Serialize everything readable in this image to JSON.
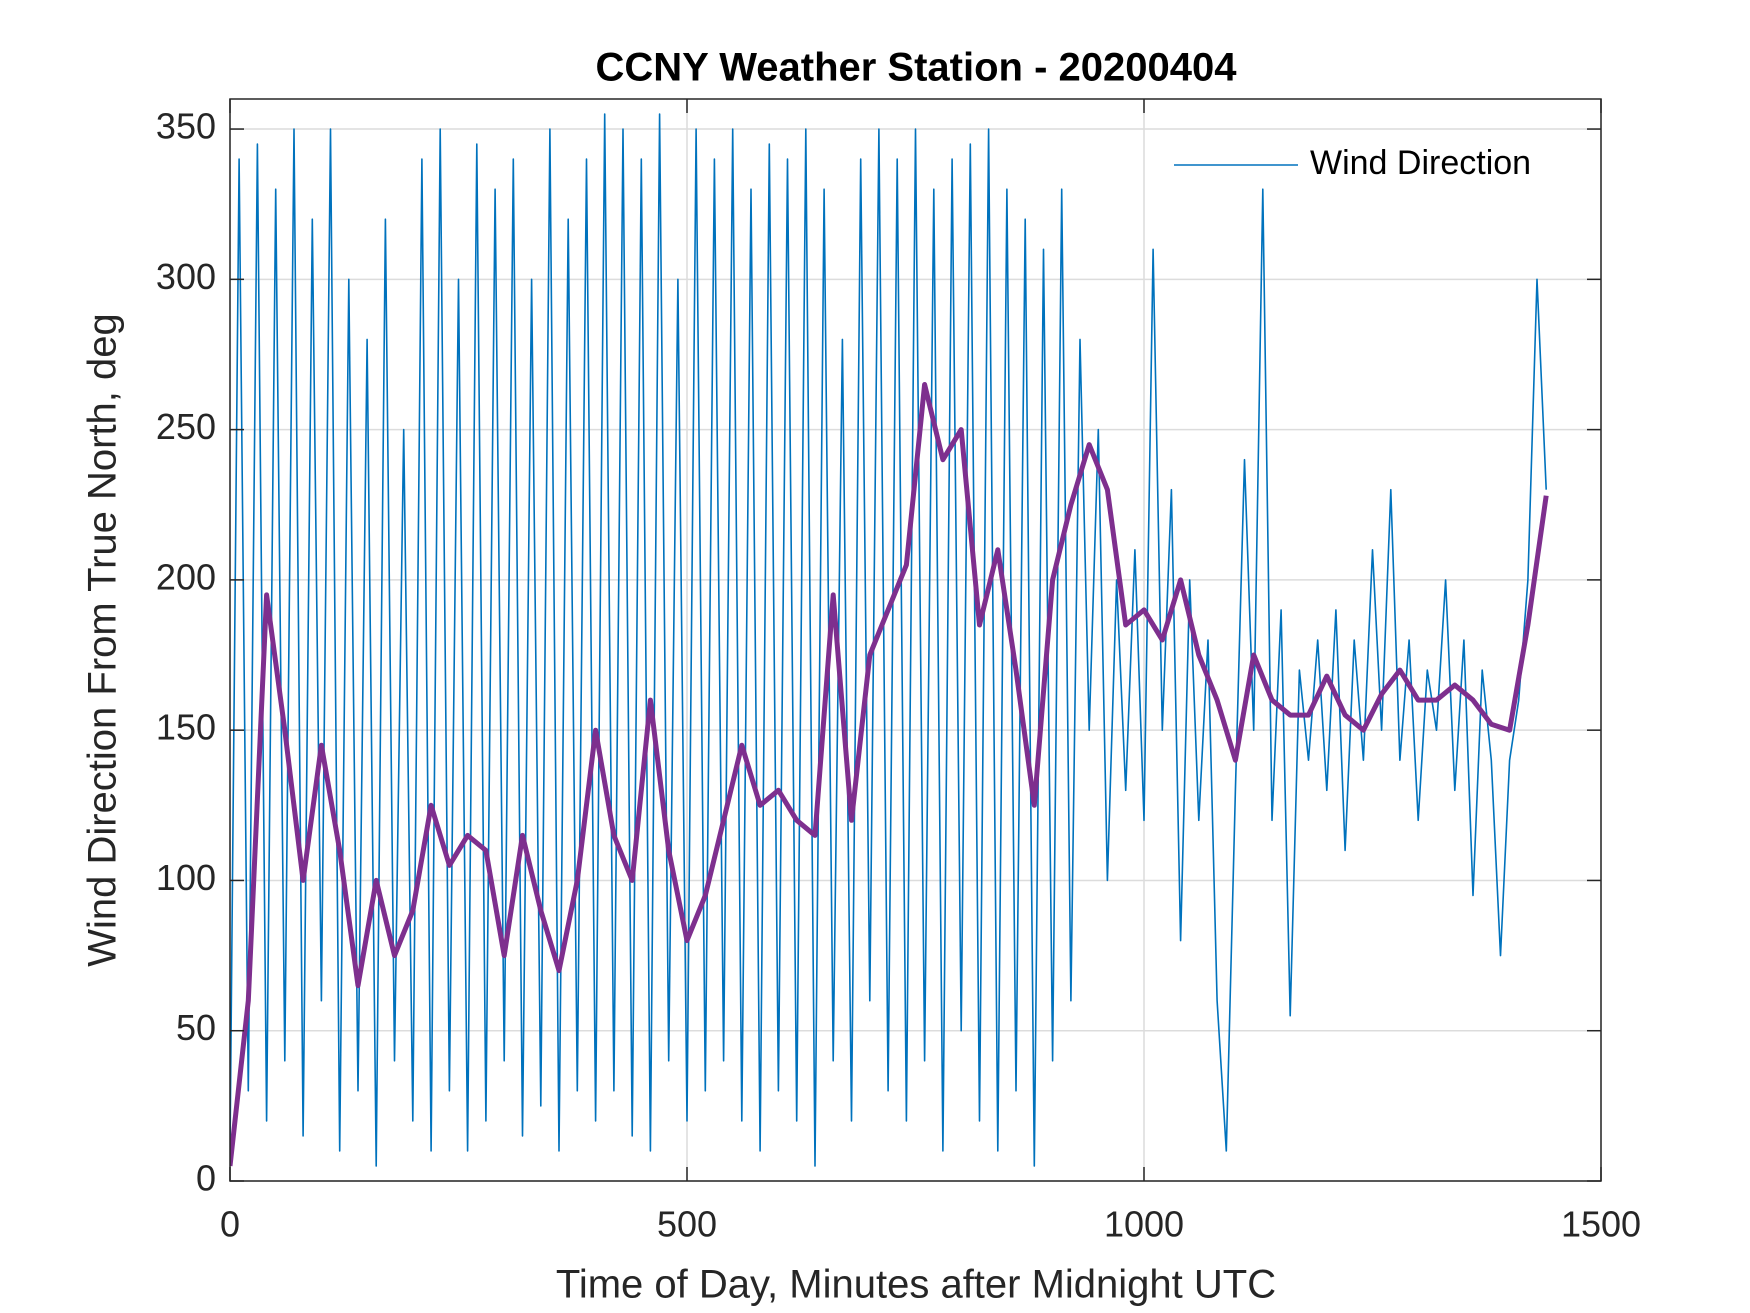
{
  "chart_data": {
    "type": "line",
    "title": "CCNY Weather Station - 20200404",
    "xlabel": "Time of Day, Minutes after Midnight UTC",
    "ylabel": "Wind Direction From True North, deg",
    "xlim": [
      0,
      1500
    ],
    "ylim": [
      0,
      360
    ],
    "xticks": [
      0,
      500,
      1000,
      1500
    ],
    "yticks": [
      0,
      50,
      100,
      150,
      200,
      250,
      300,
      350
    ],
    "grid": true,
    "legend": "northeast",
    "series": [
      {
        "name": "Wind Direction",
        "color": "#0072bd",
        "x": [
          0,
          10,
          20,
          30,
          40,
          50,
          60,
          70,
          80,
          90,
          100,
          110,
          120,
          130,
          140,
          150,
          160,
          170,
          180,
          190,
          200,
          210,
          220,
          230,
          240,
          250,
          260,
          270,
          280,
          290,
          300,
          310,
          320,
          330,
          340,
          350,
          360,
          370,
          380,
          390,
          400,
          410,
          420,
          430,
          440,
          450,
          460,
          470,
          480,
          490,
          500,
          510,
          520,
          530,
          540,
          550,
          560,
          570,
          580,
          590,
          600,
          610,
          620,
          630,
          640,
          650,
          660,
          670,
          680,
          690,
          700,
          710,
          720,
          730,
          740,
          750,
          760,
          770,
          780,
          790,
          800,
          810,
          820,
          830,
          840,
          850,
          860,
          870,
          880,
          890,
          900,
          910,
          920,
          930,
          940,
          950,
          960,
          970,
          980,
          990,
          1000,
          1010,
          1020,
          1030,
          1040,
          1050,
          1060,
          1070,
          1080,
          1090,
          1100,
          1110,
          1120,
          1130,
          1140,
          1150,
          1160,
          1170,
          1180,
          1190,
          1200,
          1210,
          1220,
          1230,
          1240,
          1250,
          1260,
          1270,
          1280,
          1290,
          1300,
          1310,
          1320,
          1330,
          1340,
          1350,
          1360,
          1370,
          1380,
          1390,
          1400,
          1410,
          1420,
          1430,
          1440
        ],
        "values": [
          10,
          340,
          30,
          345,
          20,
          330,
          40,
          350,
          15,
          320,
          60,
          350,
          10,
          300,
          30,
          280,
          5,
          320,
          40,
          250,
          20,
          340,
          10,
          350,
          30,
          300,
          10,
          345,
          20,
          330,
          40,
          340,
          15,
          300,
          25,
          350,
          10,
          320,
          30,
          340,
          20,
          355,
          30,
          350,
          15,
          340,
          10,
          355,
          40,
          300,
          20,
          350,
          30,
          340,
          40,
          350,
          20,
          330,
          10,
          345,
          30,
          340,
          20,
          350,
          5,
          330,
          40,
          280,
          20,
          340,
          60,
          350,
          30,
          340,
          20,
          350,
          40,
          330,
          10,
          340,
          50,
          345,
          20,
          350,
          10,
          330,
          30,
          320,
          5,
          310,
          40,
          330,
          60,
          280,
          150,
          250,
          100,
          200,
          130,
          210,
          120,
          310,
          150,
          230,
          80,
          200,
          120,
          180,
          60,
          10,
          130,
          240,
          150,
          330,
          120,
          190,
          55,
          170,
          140,
          180,
          130,
          190,
          110,
          180,
          140,
          210,
          150,
          230,
          140,
          180,
          120,
          170,
          150,
          200,
          130,
          180,
          95,
          170,
          140,
          75,
          140,
          160,
          200,
          300,
          230
        ]
      },
      {
        "color": "#7e2f8e",
        "x": [
          0,
          20,
          40,
          60,
          80,
          100,
          120,
          140,
          160,
          180,
          200,
          220,
          240,
          260,
          280,
          300,
          320,
          340,
          360,
          380,
          400,
          420,
          440,
          460,
          480,
          500,
          520,
          540,
          560,
          580,
          600,
          620,
          640,
          660,
          680,
          700,
          720,
          740,
          760,
          780,
          800,
          820,
          840,
          860,
          880,
          900,
          920,
          940,
          960,
          980,
          1000,
          1020,
          1040,
          1060,
          1080,
          1100,
          1120,
          1140,
          1160,
          1180,
          1200,
          1220,
          1240,
          1260,
          1280,
          1300,
          1320,
          1340,
          1360,
          1380,
          1400,
          1420,
          1440
        ],
        "values": [
          5,
          60,
          195,
          150,
          100,
          145,
          110,
          65,
          100,
          75,
          90,
          125,
          105,
          115,
          110,
          75,
          115,
          90,
          70,
          100,
          150,
          115,
          100,
          160,
          110,
          80,
          95,
          120,
          145,
          125,
          130,
          120,
          115,
          195,
          120,
          175,
          190,
          205,
          265,
          240,
          250,
          185,
          210,
          170,
          125,
          200,
          225,
          245,
          230,
          185,
          190,
          180,
          200,
          175,
          160,
          140,
          175,
          160,
          155,
          155,
          168,
          155,
          150,
          162,
          170,
          160,
          160,
          165,
          160,
          152,
          150,
          185,
          228
        ]
      }
    ]
  }
}
